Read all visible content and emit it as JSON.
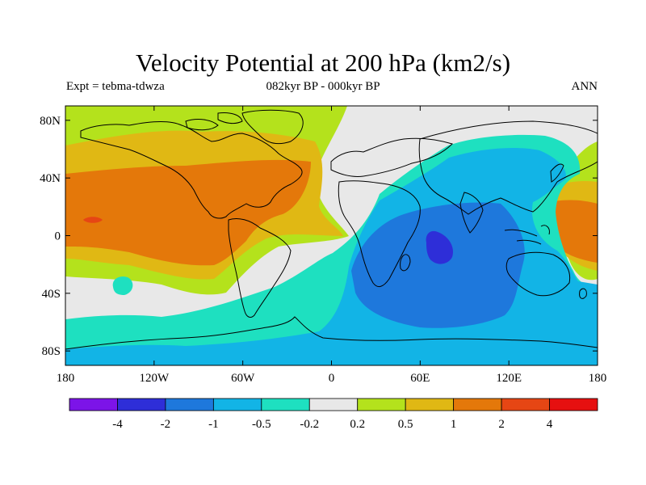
{
  "header": {
    "title": "Velocity Potential at 200 hPa (km2/s)",
    "left_label": "Expt = tebma-tdwza",
    "center_label": "082kyr BP - 000kyr BP",
    "right_label": "ANN"
  },
  "map": {
    "projection": "cylindrical equidistant",
    "lat_range": [
      -90,
      90
    ],
    "lon_range": [
      -180,
      180
    ],
    "lat_ticks": [
      {
        "value": 80,
        "label": "80N"
      },
      {
        "value": 40,
        "label": "40N"
      },
      {
        "value": 0,
        "label": "0"
      },
      {
        "value": -40,
        "label": "40S"
      },
      {
        "value": -80,
        "label": "80S"
      }
    ],
    "lon_ticks": [
      {
        "value": -180,
        "label": "180"
      },
      {
        "value": -120,
        "label": "120W"
      },
      {
        "value": -60,
        "label": "60W"
      },
      {
        "value": 0,
        "label": "0"
      },
      {
        "value": 60,
        "label": "60E"
      },
      {
        "value": 120,
        "label": "120E"
      },
      {
        "value": 180,
        "label": "180"
      }
    ]
  },
  "colorbar": {
    "bins": [
      {
        "color": "#7c14e8"
      },
      {
        "color": "#2e2ed8"
      },
      {
        "color": "#1e78dc"
      },
      {
        "color": "#12b4e6"
      },
      {
        "color": "#1ee0c0"
      },
      {
        "color": "#e8e8e8"
      },
      {
        "color": "#b4e21c"
      },
      {
        "color": "#e0b814"
      },
      {
        "color": "#e4780a"
      },
      {
        "color": "#e64614"
      },
      {
        "color": "#e61010"
      }
    ],
    "labels": [
      "-4",
      "-2",
      "-1",
      "-0.5",
      "-0.2",
      "0.2",
      "0.5",
      "1",
      "2",
      "4"
    ]
  },
  "field_colors": {
    "neutral": "#e8e8e8",
    "pos_weak": "#b4e21c",
    "pos_mid": "#e0b814",
    "pos_high": "#e4780a",
    "pos_max": "#e64614",
    "neg_weak": "#1ee0c0",
    "neg_mid": "#12b4e6",
    "neg_high": "#1e78dc",
    "neg_max": "#2e2ed8"
  }
}
